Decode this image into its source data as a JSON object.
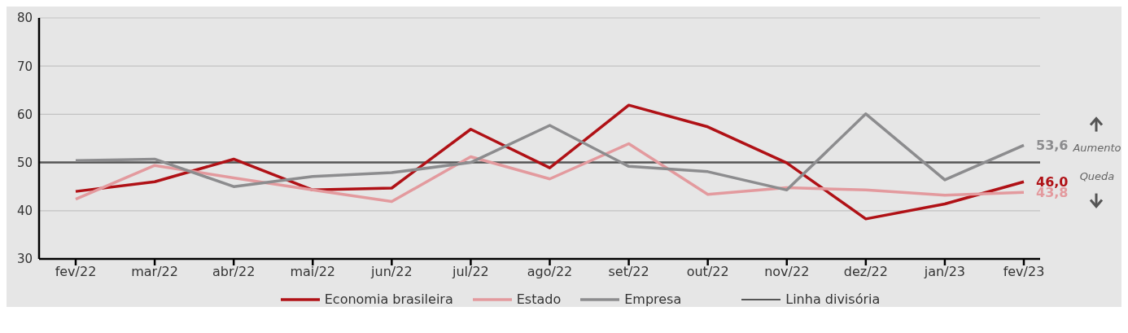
{
  "chart_data": {
    "type": "line",
    "categories": [
      "fev/22",
      "mar/22",
      "abr/22",
      "mai/22",
      "jun/22",
      "jul/22",
      "ago/22",
      "set/22",
      "out/22",
      "nov/22",
      "dez/22",
      "jan/23",
      "fev/23"
    ],
    "series": [
      {
        "name": "Economia brasileira",
        "color": "#b01116",
        "values": [
          44.0,
          46.0,
          50.7,
          44.3,
          44.7,
          56.9,
          48.9,
          61.9,
          57.4,
          49.9,
          38.3,
          41.4,
          46.0
        ],
        "value_labels": [
          null,
          null,
          null,
          null,
          null,
          null,
          null,
          null,
          null,
          null,
          null,
          null,
          "46,0"
        ]
      },
      {
        "name": "Estado",
        "color": "#e39a9e",
        "values": [
          42.4,
          49.4,
          46.8,
          44.3,
          41.9,
          51.2,
          46.6,
          53.9,
          43.4,
          44.8,
          44.3,
          43.2,
          43.8
        ],
        "value_labels": [
          null,
          null,
          null,
          null,
          null,
          null,
          null,
          null,
          null,
          null,
          null,
          null,
          "43,8"
        ]
      },
      {
        "name": "Empresa",
        "color": "#8c8c8e",
        "values": [
          50.4,
          50.7,
          45.0,
          47.1,
          47.9,
          50.0,
          57.7,
          49.2,
          48.1,
          44.3,
          60.1,
          46.4,
          53.6
        ],
        "value_labels": [
          null,
          null,
          null,
          null,
          null,
          null,
          null,
          null,
          null,
          null,
          null,
          null,
          "53,6"
        ]
      }
    ],
    "ref_lines": [
      {
        "axis": "y",
        "value": 50,
        "label": "Linha divisória",
        "color": "#555555"
      }
    ],
    "annotations": [
      "Aumento",
      "Queda"
    ],
    "ylim": [
      30,
      80
    ],
    "yticks": [
      30,
      40,
      50,
      60,
      70,
      80
    ],
    "grid": "y",
    "legend": "bottom",
    "marker": "none",
    "line_style": "solid"
  }
}
